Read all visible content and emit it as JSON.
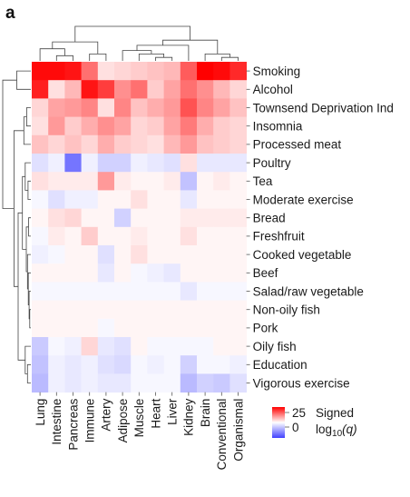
{
  "chart_data": {
    "type": "heatmap",
    "panel_label": "a",
    "rows": [
      "Smoking",
      "Alcohol",
      "Townsend Deprivation Ind",
      "Insomnia",
      "Processed meat",
      "Poultry",
      "Tea",
      "Moderate exercise",
      "Bread",
      "Freshfruit",
      "Cooked vegetable",
      "Beef",
      "Salad/raw vegetable",
      "Non-oily fish",
      "Pork",
      "Oily fish",
      "Education",
      "Vigorous exercise"
    ],
    "columns": [
      "Lung",
      "Intestine",
      "Pancreas",
      "Immune",
      "Artery",
      "Adipose",
      "Muscle",
      "Heart",
      "Liver",
      "Kidney",
      "Brain",
      "Conventional",
      "Organismal"
    ],
    "values": [
      [
        24,
        24,
        23,
        14,
        3,
        4,
        5,
        6,
        7,
        16,
        25,
        24,
        21
      ],
      [
        22,
        3,
        7,
        23,
        19,
        11,
        14,
        5,
        9,
        14,
        11,
        7,
        4
      ],
      [
        4,
        9,
        10,
        12,
        3,
        12,
        6,
        8,
        10,
        17,
        12,
        9,
        6
      ],
      [
        3,
        10,
        5,
        8,
        11,
        9,
        4,
        5,
        9,
        13,
        8,
        5,
        4
      ],
      [
        6,
        4,
        6,
        4,
        8,
        5,
        4,
        3,
        7,
        10,
        6,
        5,
        4
      ],
      [
        -4,
        -2,
        -18,
        -2,
        -6,
        -6,
        -2,
        -3,
        -4,
        3,
        -3,
        -3,
        -3
      ],
      [
        3,
        2,
        2,
        2,
        10,
        2,
        1,
        1,
        2,
        -8,
        1,
        2,
        1
      ],
      [
        -1,
        -4,
        -2,
        -2,
        1,
        1,
        3,
        1,
        1,
        -3,
        1,
        1,
        1
      ],
      [
        1,
        3,
        4,
        1,
        1,
        -6,
        1,
        1,
        1,
        2,
        2,
        2,
        2
      ],
      [
        -1,
        2,
        1,
        5,
        1,
        1,
        2,
        1,
        1,
        3,
        1,
        1,
        1
      ],
      [
        -2,
        -1,
        1,
        1,
        -4,
        1,
        3,
        1,
        1,
        1,
        1,
        1,
        1
      ],
      [
        1,
        1,
        1,
        1,
        -3,
        1,
        -1,
        -2,
        -3,
        1,
        1,
        1,
        1
      ],
      [
        -1,
        -1,
        -1,
        -1,
        -1,
        -1,
        -1,
        -1,
        -1,
        -3,
        -1,
        -1,
        -1
      ],
      [
        1,
        1,
        1,
        1,
        1,
        1,
        1,
        1,
        1,
        1,
        1,
        1,
        1
      ],
      [
        1,
        1,
        1,
        1,
        -1,
        1,
        1,
        1,
        1,
        1,
        1,
        1,
        1
      ],
      [
        -7,
        -1,
        -2,
        4,
        -3,
        -4,
        1,
        -1,
        -1,
        -1,
        -1,
        1,
        1
      ],
      [
        -8,
        -2,
        -3,
        -2,
        -4,
        -5,
        -1,
        -2,
        -1,
        -6,
        -1,
        -1,
        -2
      ],
      [
        -9,
        -2,
        -3,
        -2,
        -3,
        -3,
        -1,
        -1,
        -1,
        -9,
        -6,
        -7,
        -4
      ]
    ],
    "colorbar": {
      "ticks": [
        25,
        0
      ],
      "range": [
        -25,
        25
      ],
      "low_color": "#4040ff",
      "mid_color": "#ffffff",
      "high_color": "#ff0000",
      "title_line1": "Signed",
      "title_line2_prefix": "log",
      "title_line2_sub": "10",
      "title_line2_suffix": "(q)"
    }
  }
}
